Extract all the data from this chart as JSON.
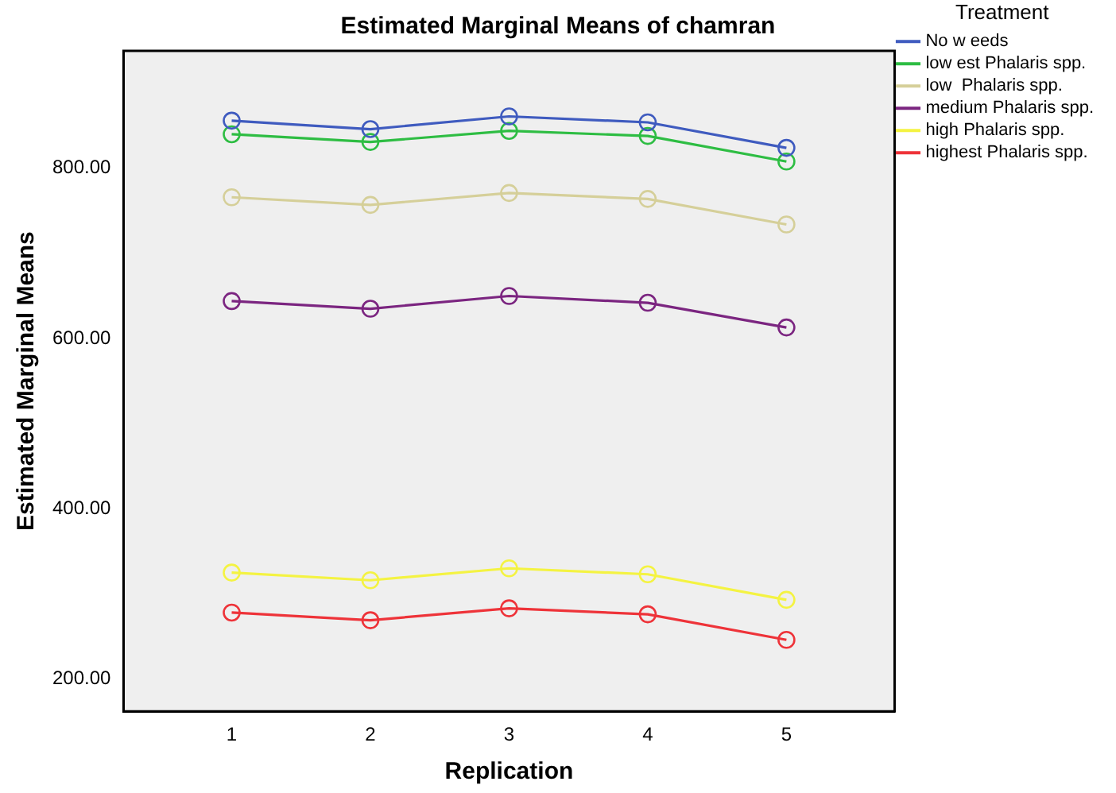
{
  "chart_data": {
    "type": "line",
    "title": "Estimated Marginal Means of chamran",
    "xlabel": "Replication",
    "ylabel": "Estimated Marginal Means",
    "legend_title": "Treatment",
    "x": [
      1,
      2,
      3,
      4,
      5
    ],
    "xlim": [
      0.22,
      5.78
    ],
    "xticks": [
      1,
      2,
      3,
      4,
      5
    ],
    "ylim": [
      162,
      938
    ],
    "yticks": [
      {
        "value": 200,
        "label": "200.00"
      },
      {
        "value": 400,
        "label": "400.00"
      },
      {
        "value": 600,
        "label": "600.00"
      },
      {
        "value": 800,
        "label": "800.00"
      }
    ],
    "grid": false,
    "legend": "right",
    "marker": "circle",
    "line_style": "solid",
    "series": [
      {
        "name": "No w eeds",
        "color": "#3f5bbf",
        "values": [
          856,
          846,
          861,
          854,
          824
        ]
      },
      {
        "name": "low est Phalaris spp.",
        "color": "#2ebd43",
        "values": [
          840,
          831,
          844,
          838,
          808
        ]
      },
      {
        "name": "low  Phalaris spp.",
        "color": "#d5cf99",
        "values": [
          766,
          757,
          771,
          764,
          734
        ]
      },
      {
        "name": "medium Phalaris spp.",
        "color": "#7b2580",
        "values": [
          644,
          635,
          650,
          642,
          613
        ]
      },
      {
        "name": "high Phalaris spp.",
        "color": "#f4f342",
        "values": [
          325,
          316,
          330,
          323,
          293
        ]
      },
      {
        "name": "highest Phalaris spp.",
        "color": "#ee3339",
        "values": [
          278,
          269,
          283,
          276,
          246
        ]
      }
    ]
  }
}
